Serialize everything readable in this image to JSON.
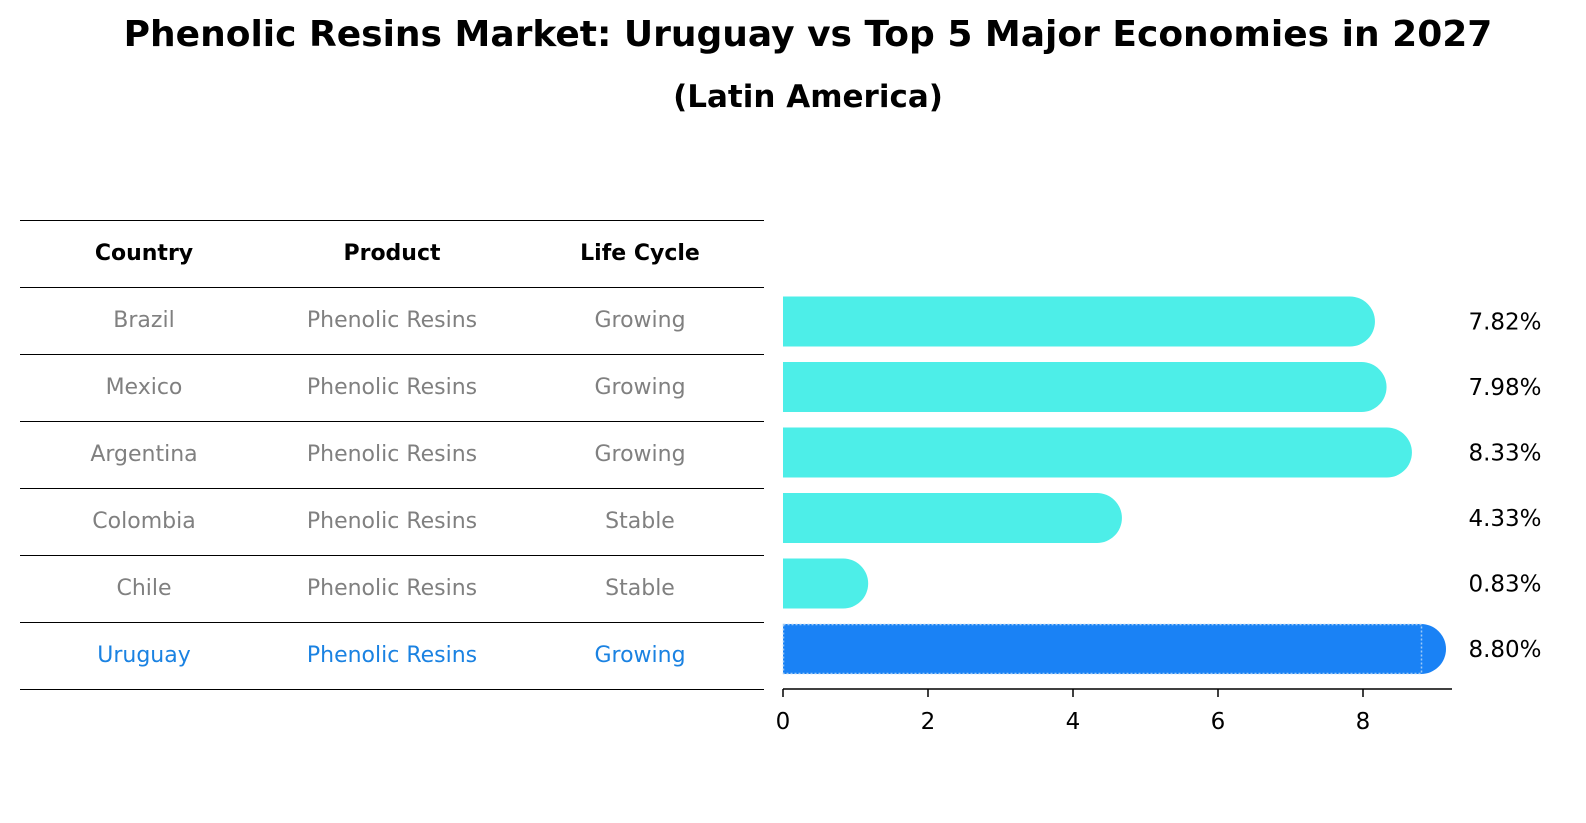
{
  "chart_data": {
    "type": "bar",
    "orientation": "horizontal",
    "title": "Phenolic Resins Market: Uruguay vs Top 5 Major Economies in 2027",
    "subtitle": "(Latin America)",
    "xlabel": "",
    "ylabel": "",
    "xlim": [
      0,
      9.24
    ],
    "xticks": [
      "0",
      "2",
      "4",
      "6",
      "8"
    ],
    "grid": false,
    "categories": [
      "Brazil",
      "Mexico",
      "Argentina",
      "Colombia",
      "Chile",
      "Uruguay"
    ],
    "values": [
      7.82,
      7.98,
      8.33,
      4.33,
      0.83,
      8.8
    ],
    "value_labels": [
      "7.82%",
      "7.98%",
      "8.33%",
      "4.33%",
      "0.83%",
      "8.80%"
    ],
    "highlight_category": "Uruguay",
    "colors": {
      "default": "#4deee8",
      "highlight": "#1a82f5",
      "highlight_text": "#1a82e2",
      "muted_text": "#808080"
    }
  },
  "table": {
    "headers": [
      "Country",
      "Product",
      "Life Cycle"
    ],
    "rows": [
      [
        "Brazil",
        "Phenolic Resins",
        "Growing"
      ],
      [
        "Mexico",
        "Phenolic Resins",
        "Growing"
      ],
      [
        "Argentina",
        "Phenolic Resins",
        "Growing"
      ],
      [
        "Colombia",
        "Phenolic Resins",
        "Stable"
      ],
      [
        "Chile",
        "Phenolic Resins",
        "Stable"
      ],
      [
        "Uruguay",
        "Phenolic Resins",
        "Growing"
      ]
    ]
  }
}
